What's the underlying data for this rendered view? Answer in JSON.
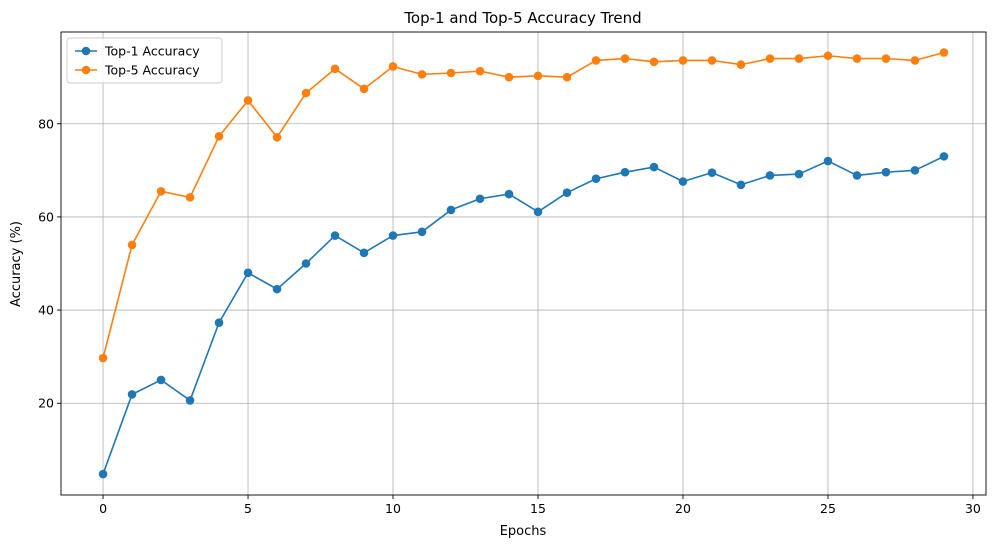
{
  "chart_data": {
    "type": "line",
    "title": "Top-1 and Top-5 Accuracy Trend",
    "xlabel": "Epochs",
    "ylabel": "Accuracy (%)",
    "x": [
      0,
      1,
      2,
      3,
      4,
      5,
      6,
      7,
      8,
      9,
      10,
      11,
      12,
      13,
      14,
      15,
      16,
      17,
      18,
      19,
      20,
      21,
      22,
      23,
      24,
      25,
      26,
      27,
      28,
      29
    ],
    "xlim": [
      -1.45,
      30.45
    ],
    "ylim": [
      0.3,
      99.7
    ],
    "xticks": [
      0,
      5,
      10,
      15,
      20,
      25,
      30
    ],
    "yticks": [
      20,
      40,
      60,
      80
    ],
    "grid": true,
    "legend_position": "top-left",
    "series": [
      {
        "name": "Top-1 Accuracy",
        "color": "#1f77b4",
        "values": [
          4.8,
          21.9,
          25.0,
          20.6,
          37.3,
          48.0,
          44.5,
          50.0,
          56.0,
          52.3,
          56.0,
          56.8,
          61.5,
          63.9,
          64.9,
          61.1,
          65.2,
          68.2,
          69.6,
          70.7,
          67.6,
          69.5,
          66.9,
          68.9,
          69.2,
          72.0,
          68.9,
          69.6,
          70.0,
          73.0
        ]
      },
      {
        "name": "Top-5 Accuracy",
        "color": "#ff7f0e",
        "values": [
          29.7,
          54.0,
          65.5,
          64.2,
          77.3,
          85.0,
          77.1,
          86.6,
          91.8,
          87.5,
          92.3,
          90.6,
          90.9,
          91.3,
          90.0,
          90.3,
          90.0,
          93.6,
          94.0,
          93.3,
          93.6,
          93.6,
          92.7,
          94.0,
          94.0,
          94.6,
          94.0,
          94.0,
          93.6,
          95.3
        ]
      }
    ]
  }
}
